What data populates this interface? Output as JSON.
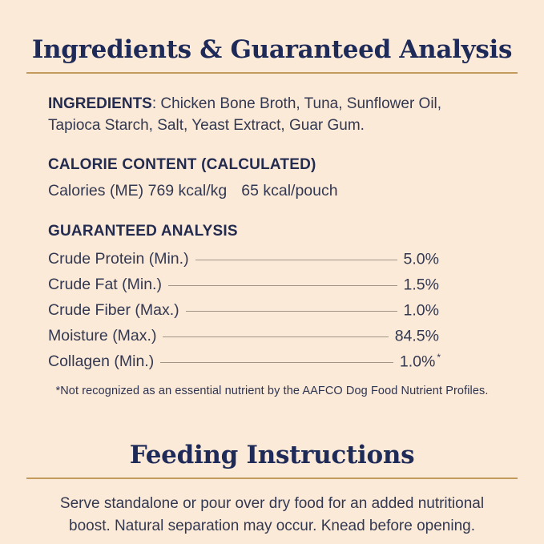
{
  "page": {
    "background_color": "#fcead9",
    "accent_gold": "#c49a5d",
    "title_color": "#1e2a57",
    "body_text_color": "#333851",
    "leader_line_color": "#a09788"
  },
  "section1": {
    "title": "Ingredients & Guaranteed Analysis",
    "ingredients": {
      "label": "INGREDIENTS",
      "line1_rest": ": Chicken Bone Broth, Tuna, Sunflower Oil,",
      "line2": "Tapioca Starch, Salt, Yeast Extract, Guar Gum."
    },
    "calorie": {
      "heading": "CALORIE CONTENT (CALCULATED)",
      "value_per_kg": "Calories (ME) 769 kcal/kg",
      "value_per_pouch": "65 kcal/pouch"
    },
    "analysis": {
      "heading": "GUARANTEED ANALYSIS",
      "rows": [
        {
          "label": "Crude Protein (Min.)",
          "value": "5.0%",
          "marker": ""
        },
        {
          "label": "Crude Fat (Min.)",
          "value": "1.5%",
          "marker": ""
        },
        {
          "label": "Crude Fiber (Max.)",
          "value": "1.0%",
          "marker": ""
        },
        {
          "label": "Moisture (Max.)",
          "value": "84.5%",
          "marker": ""
        },
        {
          "label": "Collagen (Min.)",
          "value": "1.0%",
          "marker": "*"
        }
      ],
      "footnote": "*Not recognized as an essential nutrient by the AAFCO Dog Food Nutrient Profiles."
    }
  },
  "section2": {
    "title": "Feeding Instructions",
    "body_line1": "Serve standalone or pour over dry food for an added nutritional",
    "body_line2": "boost. Natural separation may occur. Knead before opening."
  }
}
